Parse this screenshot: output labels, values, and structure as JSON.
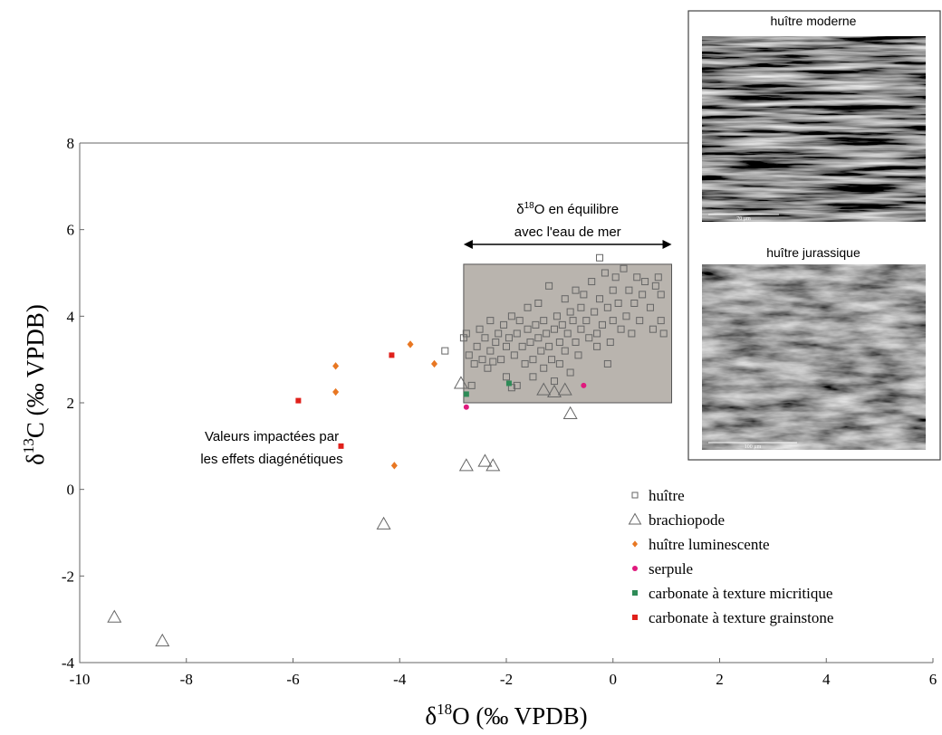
{
  "chart_data": {
    "type": "scatter",
    "xlabel": {
      "symbol": "δ",
      "sup": "18",
      "rest": "O (‰ VPDB)"
    },
    "ylabel": {
      "symbol": "δ",
      "sup": "13",
      "rest": "C (‰ VPDB)"
    },
    "xlim": [
      -10,
      6
    ],
    "ylim": [
      -4,
      8
    ],
    "xticks": [
      -10,
      -8,
      -6,
      -4,
      -2,
      0,
      2,
      4,
      6
    ],
    "yticks": [
      -4,
      -2,
      0,
      2,
      4,
      6,
      8
    ],
    "equilibrium_box": {
      "x": [
        -2.8,
        1.1
      ],
      "y": [
        2,
        5.2
      ],
      "color": "#b9b4ae"
    },
    "equilibrium_label": {
      "symbol": "δ",
      "sup": "18",
      "rest": "O en équilibre",
      "line2": "avec l'eau de mer"
    },
    "diagenesis_label": [
      "Valeurs impactées par",
      "les effets diagénétiques"
    ],
    "series": [
      {
        "name": "huître",
        "marker": "square",
        "color": "#666666",
        "x": [
          -3.15,
          -2.8,
          -2.75,
          -2.7,
          -2.6,
          -2.55,
          -2.5,
          -2.45,
          -2.4,
          -2.35,
          -2.3,
          -2.3,
          -2.25,
          -2.2,
          -2.15,
          -2.1,
          -2.05,
          -2.0,
          -2.0,
          -1.95,
          -1.9,
          -1.85,
          -1.8,
          -1.8,
          -1.75,
          -1.7,
          -1.65,
          -1.6,
          -1.6,
          -1.55,
          -1.5,
          -1.5,
          -1.45,
          -1.4,
          -1.4,
          -1.35,
          -1.3,
          -1.3,
          -1.25,
          -1.2,
          -1.2,
          -1.15,
          -1.1,
          -1.1,
          -1.05,
          -1.0,
          -1.0,
          -0.95,
          -0.9,
          -0.9,
          -0.85,
          -0.8,
          -0.8,
          -0.75,
          -0.7,
          -0.7,
          -0.65,
          -0.6,
          -0.6,
          -0.55,
          -0.5,
          -0.45,
          -0.4,
          -0.35,
          -0.3,
          -0.25,
          -0.2,
          -0.15,
          -0.1,
          -0.05,
          0.0,
          0.0,
          0.05,
          0.1,
          0.15,
          0.2,
          -0.25,
          0.25,
          0.3,
          0.35,
          0.4,
          0.45,
          0.5,
          0.55,
          0.6,
          0.7,
          0.75,
          0.8,
          0.85,
          0.9,
          0.95,
          0.9,
          -2.65,
          -1.9,
          -0.3,
          -0.1
        ],
        "y": [
          3.2,
          3.5,
          3.6,
          3.1,
          2.9,
          3.3,
          3.7,
          3.0,
          3.5,
          2.8,
          3.2,
          3.9,
          2.95,
          3.4,
          3.6,
          3.0,
          3.8,
          3.3,
          2.6,
          3.5,
          4.0,
          3.1,
          3.6,
          2.4,
          3.9,
          3.3,
          2.9,
          3.7,
          4.2,
          3.4,
          3.0,
          2.6,
          3.8,
          3.5,
          4.3,
          3.2,
          2.8,
          3.9,
          3.6,
          3.3,
          4.7,
          3.0,
          3.7,
          2.5,
          4.0,
          3.4,
          2.9,
          3.8,
          4.4,
          3.2,
          3.6,
          4.1,
          2.7,
          3.9,
          3.4,
          4.6,
          3.1,
          4.2,
          3.7,
          4.5,
          3.9,
          3.5,
          4.8,
          4.1,
          3.6,
          4.4,
          3.8,
          5.0,
          4.2,
          3.4,
          4.6,
          3.9,
          4.9,
          4.3,
          3.7,
          5.1,
          5.35,
          4.0,
          4.6,
          3.6,
          4.3,
          4.9,
          3.9,
          4.5,
          4.8,
          4.2,
          3.7,
          4.7,
          4.9,
          3.9,
          3.6,
          4.5,
          2.4,
          2.35,
          3.3,
          2.9
        ]
      },
      {
        "name": "brachiopode",
        "marker": "triangle",
        "color": "#666666",
        "x": [
          -9.35,
          -8.45,
          -4.3,
          -2.75,
          -2.4,
          -2.25,
          -0.8,
          -2.85,
          -1.3,
          -1.1,
          -0.9
        ],
        "y": [
          -2.95,
          -3.5,
          -0.8,
          0.55,
          0.65,
          0.55,
          1.75,
          2.45,
          2.3,
          2.25,
          2.3
        ]
      },
      {
        "name": "huître luminescente",
        "marker": "diamond",
        "color": "#e87722",
        "x": [
          -5.2,
          -5.2,
          -3.8,
          -3.35,
          -4.1
        ],
        "y": [
          2.85,
          2.25,
          3.35,
          2.9,
          0.55
        ]
      },
      {
        "name": "serpule",
        "marker": "circle",
        "color": "#e0197d",
        "x": [
          -2.75,
          -0.55
        ],
        "y": [
          1.9,
          2.4
        ]
      },
      {
        "name": "carbonate à texture micritique",
        "marker": "square-fill",
        "color": "#2e8b57",
        "x": [
          -2.75,
          -1.95
        ],
        "y": [
          2.2,
          2.45
        ]
      },
      {
        "name": "carbonate à texture grainstone",
        "marker": "square-fill",
        "color": "#e0201b",
        "x": [
          -5.9,
          -4.15,
          -5.1
        ],
        "y": [
          2.05,
          3.1,
          1.0
        ]
      }
    ]
  },
  "insets": [
    {
      "title": "huître moderne",
      "scale": "70 µm"
    },
    {
      "title": "huître jurassique",
      "scale": "100 µm"
    }
  ]
}
